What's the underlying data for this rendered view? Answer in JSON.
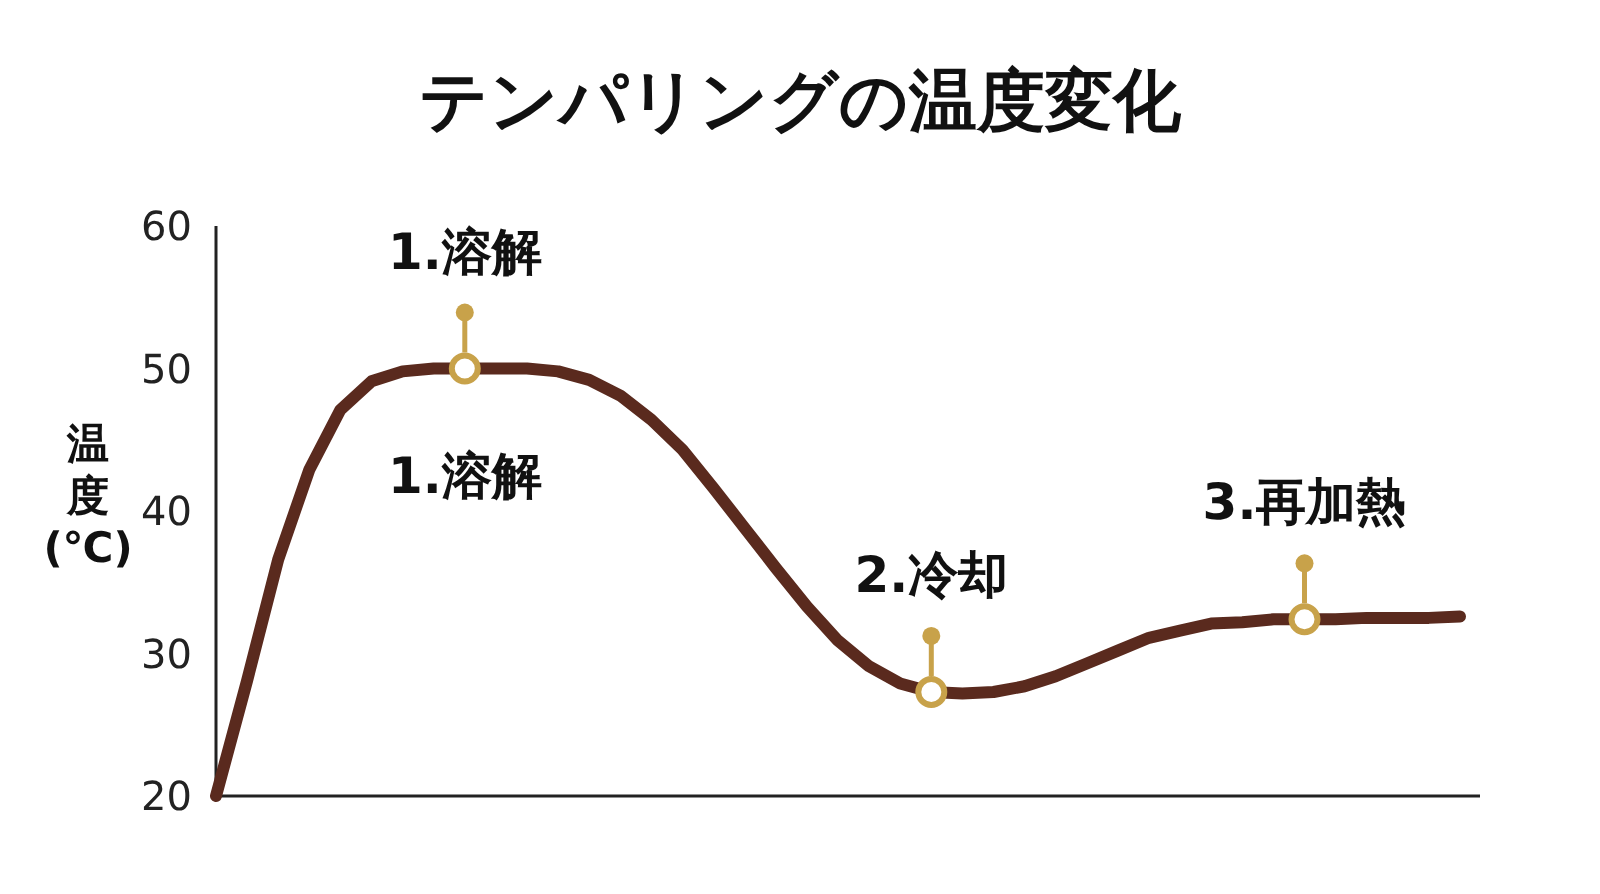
{
  "chart_data": {
    "type": "line",
    "title": "テンパリングの温度変化",
    "ylabel": "温度(℃)",
    "ylim": [
      20,
      60
    ],
    "yticks": [
      20,
      30,
      40,
      50,
      60
    ],
    "grid": false,
    "tick_labels": "y",
    "categories": [
      null,
      null,
      null,
      null,
      null,
      null,
      null,
      null,
      null,
      null,
      null,
      null,
      null,
      null,
      null,
      null,
      null,
      null,
      null,
      null,
      null,
      null,
      null,
      null,
      null,
      null,
      null,
      null,
      null,
      null,
      null,
      null,
      null,
      null,
      null,
      null,
      null,
      null,
      null,
      null,
      null
    ],
    "series": [
      {
        "color": "#5a2a1e",
        "values": [
          20,
          28.1,
          36.6,
          42.9,
          47.1,
          49.1,
          49.8,
          50,
          50,
          50,
          50,
          49.8,
          49.2,
          48.1,
          46.4,
          44.3,
          41.6,
          38.8,
          36,
          33.3,
          30.9,
          29.1,
          27.9,
          27.3,
          27.2,
          27.3,
          27.7,
          28.4,
          29.3,
          30.2,
          31.1,
          31.6,
          32.1,
          32.2,
          32.4,
          32.4,
          32.4,
          32.5,
          32.5,
          32.5,
          32.6
        ]
      },
      {
        "type": "scatter",
        "color": "#c8a24a",
        "marker": "circle",
        "values": [
          null,
          null,
          null,
          null,
          null,
          null,
          null,
          null,
          50,
          null,
          null,
          null,
          null,
          null,
          null,
          null,
          null,
          null,
          null,
          null,
          null,
          null,
          null,
          27.3,
          null,
          null,
          null,
          null,
          null,
          null,
          null,
          null,
          null,
          null,
          null,
          32.4,
          null,
          null,
          null,
          null,
          null
        ]
      }
    ],
    "annotations": [
      {
        "text": "1.溶解",
        "y": 50
      },
      {
        "text": "1.溶解",
        "y": 50
      },
      {
        "text": "2.冷却",
        "y": 27.3
      },
      {
        "text": "3.再加熱",
        "y": 32.4
      }
    ]
  }
}
